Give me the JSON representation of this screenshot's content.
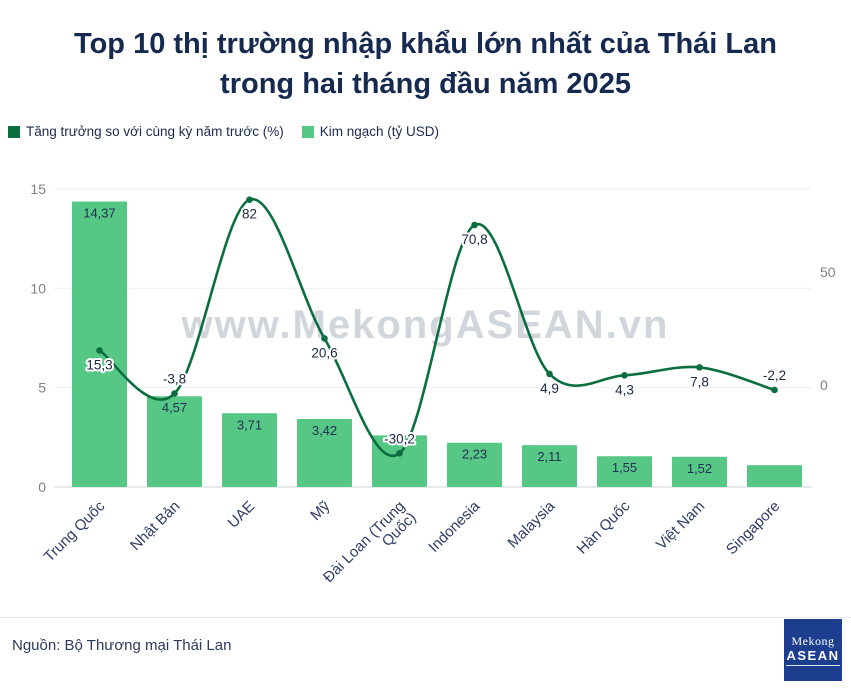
{
  "title": "Top 10 thị trường nhập khẩu lớn nhất của Thái Lan trong hai tháng đầu năm 2025",
  "legend": [
    {
      "label": "Tăng trưởng so với cùng kỳ năm trước (%)",
      "color": "#0b6e3e"
    },
    {
      "label": "Kim ngạch (tỷ USD)",
      "color": "#57c785"
    }
  ],
  "watermark": "www.MekongASEAN.vn",
  "source": "Nguồn: Bộ Thương mại Thái Lan",
  "logo": {
    "line1": "Mekong",
    "line2": "ASEAN"
  },
  "chart_data": {
    "type": "combo",
    "bar_color": "#57c785",
    "line_color": "#0b6e3e",
    "grid": true,
    "legend_position": "top-left",
    "categories": [
      "Trung Quốc",
      "Nhật Bản",
      "UAE",
      "Mỹ",
      "Đài Loan (Trung\nQuốc)",
      "Indonesia",
      "Malaysia",
      "Hàn Quốc",
      "Việt Nam",
      "Singapore"
    ],
    "series": [
      {
        "name": "Kim ngạch (tỷ USD)",
        "type": "bar",
        "axis": "left",
        "values": [
          14.37,
          4.57,
          3.71,
          3.42,
          2.6,
          2.23,
          2.11,
          1.55,
          1.52,
          1.1
        ],
        "labels": [
          "14,37",
          "4,57",
          "3,71",
          "3,42",
          "",
          "2,23",
          "2,11",
          "1,55",
          "1,52",
          ""
        ]
      },
      {
        "name": "Tăng trưởng so với cùng kỳ năm trước (%)",
        "type": "line",
        "axis": "right",
        "values": [
          15.3,
          -3.8,
          82,
          20.6,
          -30.2,
          70.8,
          4.9,
          4.3,
          7.8,
          -2.2
        ],
        "labels": [
          "15,3",
          "-3,8",
          "82",
          "20,6",
          "-30,2",
          "70,8",
          "4,9",
          "4,3",
          "7,8",
          "-2,2"
        ],
        "label_placement": [
          "below",
          "above",
          "below",
          "below",
          "above",
          "below",
          "below",
          "below",
          "below",
          "above"
        ]
      }
    ],
    "left_axis": {
      "ticks": [
        0,
        5,
        10,
        15
      ],
      "range": [
        0,
        15
      ]
    },
    "right_axis": {
      "ticks": [
        0,
        50
      ],
      "range": [
        -50,
        100
      ]
    }
  }
}
